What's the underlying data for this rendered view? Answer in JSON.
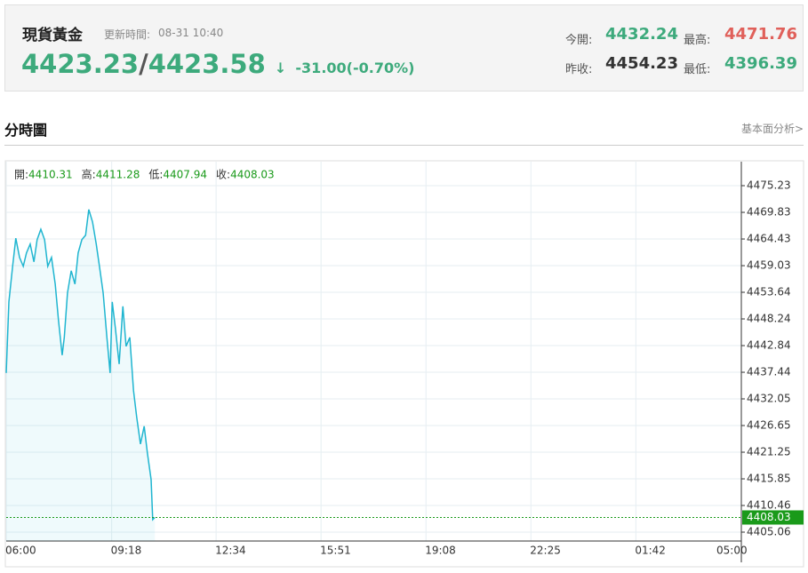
{
  "header": {
    "title": "現貨黃金",
    "update_label": "更新時間:",
    "update_time": "08-31 10:40",
    "bid": "4423.23",
    "separator": "/",
    "ask": "4423.58",
    "arrow": "↓",
    "change": "-31.00(-0.70%)",
    "stats": [
      {
        "label": "今開:",
        "value": "4432.24"
      },
      {
        "label": "最高:",
        "value": "4471.76"
      },
      {
        "label": "昨收:",
        "value": "4454.23"
      },
      {
        "label": "最低:",
        "value": "4396.39"
      }
    ]
  },
  "section": {
    "title": "分時圖",
    "link": "基本面分析>"
  },
  "chart_data": {
    "type": "line",
    "ohlc": [
      {
        "label": "開:",
        "value": 4410.31
      },
      {
        "label": "高:",
        "value": 4411.28
      },
      {
        "label": "低:",
        "value": 4407.94
      },
      {
        "label": "收:",
        "value": 4408.03
      }
    ],
    "x": [
      0,
      5,
      12,
      18,
      25,
      32,
      38,
      45,
      52,
      58,
      65,
      72,
      78,
      85,
      92,
      98,
      105,
      109,
      115,
      122,
      129,
      135,
      142,
      149,
      155,
      162,
      169,
      175,
      182,
      189,
      195,
      199,
      205,
      212,
      219,
      225,
      232,
      239,
      245,
      252,
      259,
      265,
      272,
      275,
      279
    ],
    "series": [
      {
        "color": "#1fb5d0",
        "values": [
          4437.3,
          4451.7,
          4458.9,
          4464.6,
          4460.7,
          4458.9,
          4461.6,
          4463.4,
          4459.8,
          4464.3,
          4466.4,
          4464.3,
          4458.9,
          4460.7,
          4455.3,
          4448.1,
          4440.9,
          4444.5,
          4453.5,
          4458.0,
          4455.3,
          4461.6,
          4464.3,
          4465.2,
          4470.4,
          4467.9,
          4463.4,
          4458.9,
          4453.5,
          4444.5,
          4437.3,
          4451.7,
          4446.3,
          4439.1,
          4450.8,
          4442.7,
          4444.5,
          4433.7,
          4428.3,
          4422.9,
          4426.5,
          4421.1,
          4415.7,
          4407.6,
          4408.03
        ]
      }
    ],
    "last_price": 4408.03,
    "last_color": "#1a9a1a",
    "xlim": [
      0,
      1380
    ],
    "xticks": [
      {
        "value": 0,
        "label": "06:00"
      },
      {
        "value": 198,
        "label": "09:18"
      },
      {
        "value": 394,
        "label": "12:34"
      },
      {
        "value": 591,
        "label": "15:51"
      },
      {
        "value": 788,
        "label": "19:08"
      },
      {
        "value": 985,
        "label": "22:25"
      },
      {
        "value": 1182,
        "label": "01:42"
      },
      {
        "value": 1380,
        "label": "05:00"
      }
    ],
    "ylim": [
      4403.26,
      4480.09
    ],
    "yticks": [
      4405.06,
      4410.46,
      4415.85,
      4421.25,
      4426.65,
      4432.05,
      4437.44,
      4442.84,
      4448.24,
      4453.64,
      4459.03,
      4464.43,
      4469.83,
      4475.23
    ],
    "grid": true
  }
}
